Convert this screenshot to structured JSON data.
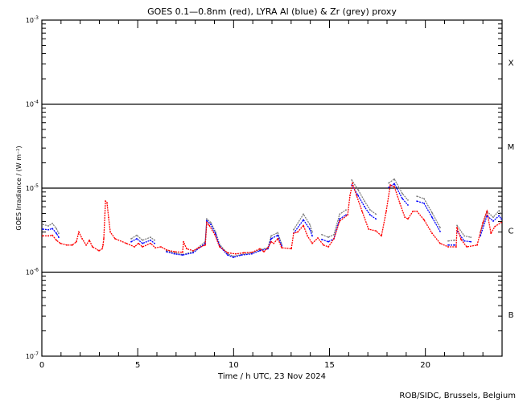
{
  "chart_data": {
    "type": "scatter",
    "title": "GOES 0.1—0.8nm (red), LYRA Al (blue) & Zr (grey) proxy",
    "xlabel": "Time / h UTC, 23 Nov 2024",
    "ylabel": "GOES Irradiance / (W m⁻²)",
    "xlim": [
      0,
      24
    ],
    "ylim": [
      1e-07,
      0.001
    ],
    "yscale": "log",
    "x_ticks": [
      "0",
      "5",
      "10",
      "15",
      "20"
    ],
    "x_tick_values": [
      0,
      5,
      10,
      15,
      20
    ],
    "y_ticks": [
      {
        "base": "10",
        "exp": "-3",
        "value": 0.001
      },
      {
        "base": "10",
        "exp": "-4",
        "value": 0.0001
      },
      {
        "base": "10",
        "exp": "-5",
        "value": 1e-05
      },
      {
        "base": "10",
        "exp": "-6",
        "value": 1e-06
      },
      {
        "base": "10",
        "exp": "-7",
        "value": 1e-07
      }
    ],
    "class_lines": [
      0.0001,
      1e-05,
      1e-06
    ],
    "flare_classes": [
      {
        "label": "X",
        "value": 0.000316
      },
      {
        "label": "M",
        "value": 3.16e-05
      },
      {
        "label": "C",
        "value": 3.16e-06
      },
      {
        "label": "B",
        "value": 3.16e-07
      }
    ],
    "grid": false,
    "legend": "in title",
    "credit": "ROB/SIDC, Brussels, Belgium",
    "colors": {
      "red": "#ff0000",
      "blue": "#0000ff",
      "grey": "#808080",
      "axis": "#000000"
    },
    "series": [
      {
        "name": "GOES 0.1-0.8nm",
        "color": "red",
        "points": [
          [
            0.04,
            2.7e-06
          ],
          [
            0.34,
            2.7e-06
          ],
          [
            0.55,
            2.75e-06
          ],
          [
            0.76,
            2.4e-06
          ],
          [
            0.97,
            2.2e-06
          ],
          [
            1.3,
            2.1e-06
          ],
          [
            1.59,
            2.1e-06
          ],
          [
            1.8,
            2.3e-06
          ],
          [
            1.93,
            3e-06
          ],
          [
            2.1,
            2.5e-06
          ],
          [
            2.31,
            2.1e-06
          ],
          [
            2.48,
            2.4e-06
          ],
          [
            2.64,
            2e-06
          ],
          [
            2.98,
            1.8e-06
          ],
          [
            3.15,
            1.9e-06
          ],
          [
            3.19,
            2.1e-06
          ],
          [
            3.23,
            2.5e-06
          ],
          [
            3.32,
            7e-06
          ],
          [
            3.4,
            6.7e-06
          ],
          [
            3.48,
            4.5e-06
          ],
          [
            3.57,
            3e-06
          ],
          [
            3.82,
            2.5e-06
          ],
          [
            4.41,
            2.2e-06
          ],
          [
            4.83,
            2e-06
          ],
          [
            5.04,
            2.2e-06
          ],
          [
            5.25,
            2e-06
          ],
          [
            5.67,
            2.2e-06
          ],
          [
            5.92,
            1.95e-06
          ],
          [
            6.21,
            2e-06
          ],
          [
            6.5,
            1.84e-06
          ],
          [
            6.92,
            1.75e-06
          ],
          [
            7.34,
            1.72e-06
          ],
          [
            7.39,
            2.3e-06
          ],
          [
            7.55,
            1.9e-06
          ],
          [
            7.89,
            1.8e-06
          ],
          [
            8.18,
            1.95e-06
          ],
          [
            8.52,
            2.1e-06
          ],
          [
            8.6,
            3.9e-06
          ],
          [
            8.73,
            3.6e-06
          ],
          [
            9.02,
            2.8e-06
          ],
          [
            9.27,
            2e-06
          ],
          [
            9.69,
            1.7e-06
          ],
          [
            10.11,
            1.65e-06
          ],
          [
            10.53,
            1.7e-06
          ],
          [
            10.95,
            1.72e-06
          ],
          [
            11.37,
            1.9e-06
          ],
          [
            11.58,
            1.75e-06
          ],
          [
            11.79,
            1.95e-06
          ],
          [
            11.96,
            2.3e-06
          ],
          [
            12.09,
            2.2e-06
          ],
          [
            12.3,
            2.5e-06
          ],
          [
            12.51,
            1.95e-06
          ],
          [
            13.01,
            1.9e-06
          ],
          [
            13.13,
            2.9e-06
          ],
          [
            13.34,
            3e-06
          ],
          [
            13.64,
            3.6e-06
          ],
          [
            13.85,
            2.7e-06
          ],
          [
            14.1,
            2.2e-06
          ],
          [
            14.39,
            2.55e-06
          ],
          [
            14.69,
            2.1e-06
          ],
          [
            14.94,
            2e-06
          ],
          [
            15.23,
            2.5e-06
          ],
          [
            15.53,
            4.05e-06
          ],
          [
            15.95,
            4.8e-06
          ],
          [
            16.07,
            8.2e-06
          ],
          [
            16.2,
            1.14e-05
          ],
          [
            16.41,
            8.2e-06
          ],
          [
            16.7,
            5.3e-06
          ],
          [
            17.04,
            3.25e-06
          ],
          [
            17.42,
            3.1e-06
          ],
          [
            17.71,
            2.7e-06
          ],
          [
            17.96,
            5.3e-06
          ],
          [
            18.17,
            1.09e-05
          ],
          [
            18.38,
            1.04e-05
          ],
          [
            18.67,
            6.6e-06
          ],
          [
            18.93,
            4.5e-06
          ],
          [
            19.09,
            4.3e-06
          ],
          [
            19.35,
            5.3e-06
          ],
          [
            19.56,
            5.3e-06
          ],
          [
            19.93,
            4.2e-06
          ],
          [
            20.35,
            2.9e-06
          ],
          [
            20.77,
            2.2e-06
          ],
          [
            21.19,
            2e-06
          ],
          [
            21.61,
            2e-06
          ],
          [
            21.65,
            3.4e-06
          ],
          [
            21.86,
            2.45e-06
          ],
          [
            22.16,
            2e-06
          ],
          [
            22.7,
            2.1e-06
          ],
          [
            23.0,
            3.9e-06
          ],
          [
            23.21,
            5.3e-06
          ],
          [
            23.42,
            2.9e-06
          ],
          [
            23.63,
            3.5e-06
          ],
          [
            23.96,
            3.9e-06
          ]
        ]
      },
      {
        "name": "LYRA Al proxy",
        "color": "blue",
        "points": [
          [
            0.04,
            3.25e-06
          ],
          [
            0.34,
            3.2e-06
          ],
          [
            0.55,
            3.3e-06
          ],
          [
            0.76,
            2.9e-06
          ],
          [
            0.88,
            2.6e-06
          ],
          null,
          [
            4.66,
            2.3e-06
          ],
          [
            4.95,
            2.5e-06
          ],
          [
            5.25,
            2.2e-06
          ],
          [
            5.67,
            2.4e-06
          ],
          [
            5.88,
            2.2e-06
          ],
          null,
          [
            6.5,
            1.75e-06
          ],
          [
            6.92,
            1.65e-06
          ],
          [
            7.34,
            1.6e-06
          ],
          [
            7.89,
            1.7e-06
          ],
          [
            8.52,
            2.2e-06
          ],
          [
            8.6,
            4.1e-06
          ],
          [
            8.81,
            3.7e-06
          ],
          [
            9.06,
            2.85e-06
          ],
          [
            9.27,
            2.05e-06
          ],
          [
            9.69,
            1.6e-06
          ],
          [
            9.99,
            1.5e-06
          ],
          [
            10.4,
            1.6e-06
          ],
          [
            10.95,
            1.65e-06
          ],
          [
            11.37,
            1.8e-06
          ],
          [
            11.79,
            1.9e-06
          ],
          [
            11.96,
            2.5e-06
          ],
          [
            12.3,
            2.75e-06
          ],
          [
            12.51,
            2.05e-06
          ],
          null,
          [
            13.13,
            2.9e-06
          ],
          [
            13.64,
            4.2e-06
          ],
          [
            13.97,
            3.25e-06
          ],
          [
            14.1,
            2.7e-06
          ],
          null,
          [
            14.6,
            2.45e-06
          ],
          [
            14.94,
            2.3e-06
          ],
          [
            15.23,
            2.5e-06
          ],
          [
            15.53,
            4.3e-06
          ],
          [
            15.86,
            4.8e-06
          ],
          null,
          [
            16.16,
            1.09e-05
          ],
          [
            16.49,
            8.2e-06
          ],
          [
            16.83,
            6e-06
          ],
          [
            17.12,
            4.8e-06
          ],
          [
            17.42,
            4.3e-06
          ],
          null,
          [
            18.09,
            1.02e-05
          ],
          [
            18.38,
            1.13e-05
          ],
          [
            18.8,
            7.5e-06
          ],
          [
            19.09,
            6.3e-06
          ],
          null,
          [
            19.56,
            7e-06
          ],
          [
            19.93,
            6.6e-06
          ],
          [
            20.35,
            4.5e-06
          ],
          [
            20.77,
            3.05e-06
          ],
          null,
          [
            21.19,
            2.1e-06
          ],
          [
            21.53,
            2.1e-06
          ],
          null,
          [
            21.65,
            3.1e-06
          ],
          [
            22.03,
            2.35e-06
          ],
          [
            22.37,
            2.3e-06
          ],
          null,
          [
            22.87,
            2.7e-06
          ],
          [
            23.21,
            4.7e-06
          ],
          [
            23.54,
            4.05e-06
          ],
          [
            23.84,
            4.7e-06
          ],
          [
            23.96,
            4.3e-06
          ]
        ]
      },
      {
        "name": "LYRA Zr proxy",
        "color": "grey",
        "points": [
          [
            0.04,
            3.7e-06
          ],
          [
            0.34,
            3.55e-06
          ],
          [
            0.55,
            3.8e-06
          ],
          [
            0.76,
            3.3e-06
          ],
          [
            0.88,
            2.9e-06
          ],
          null,
          [
            4.66,
            2.5e-06
          ],
          [
            4.95,
            2.75e-06
          ],
          [
            5.25,
            2.4e-06
          ],
          [
            5.67,
            2.6e-06
          ],
          [
            5.88,
            2.4e-06
          ],
          null,
          [
            6.5,
            1.8e-06
          ],
          [
            6.92,
            1.7e-06
          ],
          [
            7.34,
            1.62e-06
          ],
          [
            7.89,
            1.75e-06
          ],
          [
            8.52,
            2.3e-06
          ],
          [
            8.6,
            4.3e-06
          ],
          [
            8.81,
            3.9e-06
          ],
          [
            9.06,
            3e-06
          ],
          [
            9.27,
            2.15e-06
          ],
          [
            9.69,
            1.65e-06
          ],
          [
            9.99,
            1.55e-06
          ],
          [
            10.4,
            1.62e-06
          ],
          [
            10.95,
            1.7e-06
          ],
          [
            11.37,
            1.85e-06
          ],
          [
            11.79,
            1.95e-06
          ],
          [
            11.96,
            2.7e-06
          ],
          [
            12.3,
            2.95e-06
          ],
          [
            12.51,
            2.15e-06
          ],
          null,
          [
            13.13,
            3.2e-06
          ],
          [
            13.64,
            4.9e-06
          ],
          [
            13.97,
            3.7e-06
          ],
          [
            14.1,
            3e-06
          ],
          null,
          [
            14.6,
            2.8e-06
          ],
          [
            14.94,
            2.6e-06
          ],
          [
            15.23,
            2.8e-06
          ],
          [
            15.53,
            4.9e-06
          ],
          [
            15.86,
            5.5e-06
          ],
          null,
          [
            16.16,
            1.25e-05
          ],
          [
            16.49,
            9.6e-06
          ],
          [
            16.83,
            7e-06
          ],
          [
            17.12,
            5.5e-06
          ],
          [
            17.42,
            4.9e-06
          ],
          null,
          [
            18.09,
            1.15e-05
          ],
          [
            18.38,
            1.28e-05
          ],
          [
            18.8,
            8.6e-06
          ],
          [
            19.09,
            7.2e-06
          ],
          null,
          [
            19.56,
            8e-06
          ],
          [
            19.93,
            7.5e-06
          ],
          [
            20.35,
            5.1e-06
          ],
          [
            20.77,
            3.4e-06
          ],
          null,
          [
            21.19,
            2.35e-06
          ],
          [
            21.53,
            2.4e-06
          ],
          null,
          [
            21.65,
            3.6e-06
          ],
          [
            22.03,
            2.7e-06
          ],
          [
            22.37,
            2.6e-06
          ],
          null,
          [
            22.87,
            3e-06
          ],
          [
            23.21,
            5.3e-06
          ],
          [
            23.54,
            4.5e-06
          ],
          [
            23.84,
            5.4e-06
          ],
          [
            23.96,
            4.9e-06
          ]
        ]
      }
    ]
  }
}
